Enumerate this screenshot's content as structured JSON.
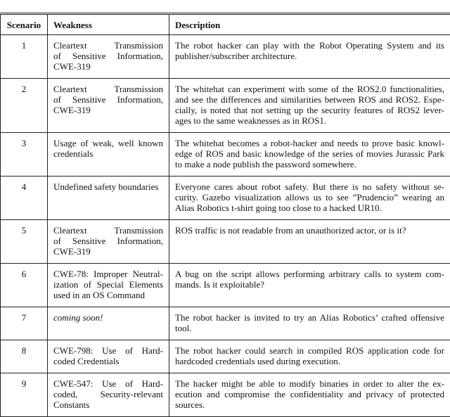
{
  "table": {
    "headers": [
      "Scenario",
      "Weakness",
      "Description"
    ],
    "rows": [
      {
        "scenario": "1",
        "weakness": [
          "Cleartext Transmission",
          "of Sensitive Information,",
          "CWE-319"
        ],
        "description": [
          "The robot hacker can play with the Robot Operating System and its",
          "publisher/subscriber architecture."
        ]
      },
      {
        "scenario": "2",
        "weakness": [
          "Cleartext Transmission",
          "of Sensitive Information,",
          "CWE-319"
        ],
        "description": [
          "The whitehat can experiment with some of the ROS2.0 functionalities,",
          "and see the differences and similarities between ROS and ROS2. Espe-",
          "cially, is noted that not setting up the security features of ROS2 lever-",
          "ages to the same weaknesses as in ROS1."
        ]
      },
      {
        "scenario": "3",
        "weakness": [
          "Usage of weak, well known",
          "credentials"
        ],
        "description": [
          "The whitehat becomes a robot-hacker and needs to prove basic knowl-",
          "edge of ROS and basic knowledge of the series of movies Jurassic Park",
          "to make a node publish the password somewhere."
        ]
      },
      {
        "scenario": "4",
        "weakness": [
          "Undefined safety boundaries"
        ],
        "description": [
          "Everyone cares about robot safety. But there is no safety without se-",
          "curity. Gazebo visualization allows us to see ”Prudencio” wearing an",
          "Alias Robotics t-shirt going too close to a hacked UR10."
        ]
      },
      {
        "scenario": "5",
        "weakness": [
          "Cleartext Transmission",
          "of Sensitive Information,",
          "CWE-319"
        ],
        "description": [
          "ROS traffic is not readable from an unauthorized actor, or is it?"
        ]
      },
      {
        "scenario": "6",
        "weakness": [
          "CWE-78: Improper Neutral-",
          "ization of Special Elements",
          "used in an OS Command"
        ],
        "description": [
          "A bug on the script allows performing arbitrary calls to system com-",
          "mands. Is it exploitable?"
        ]
      },
      {
        "scenario": "7",
        "weakness": [
          "coming soon!"
        ],
        "description": [
          "The robot hacker is invited to try an Alias Robotics’ crafted offensive",
          "tool."
        ]
      },
      {
        "scenario": "8",
        "weakness": [
          "CWE-798: Use of Hard-",
          "coded Credentials"
        ],
        "description": [
          "The robot hacker could search in compiled ROS application code for",
          "hardcoded credentials used during execution."
        ]
      },
      {
        "scenario": "9",
        "weakness": [
          "CWE-547: Use of Hard-",
          "coded, Security-relevant",
          "Constants"
        ],
        "description": [
          "The hacker might be able to modify binaries in order to alter the ex-",
          "ecution and compromise the confidentiality and privacy of protected",
          "sources."
        ]
      }
    ]
  }
}
